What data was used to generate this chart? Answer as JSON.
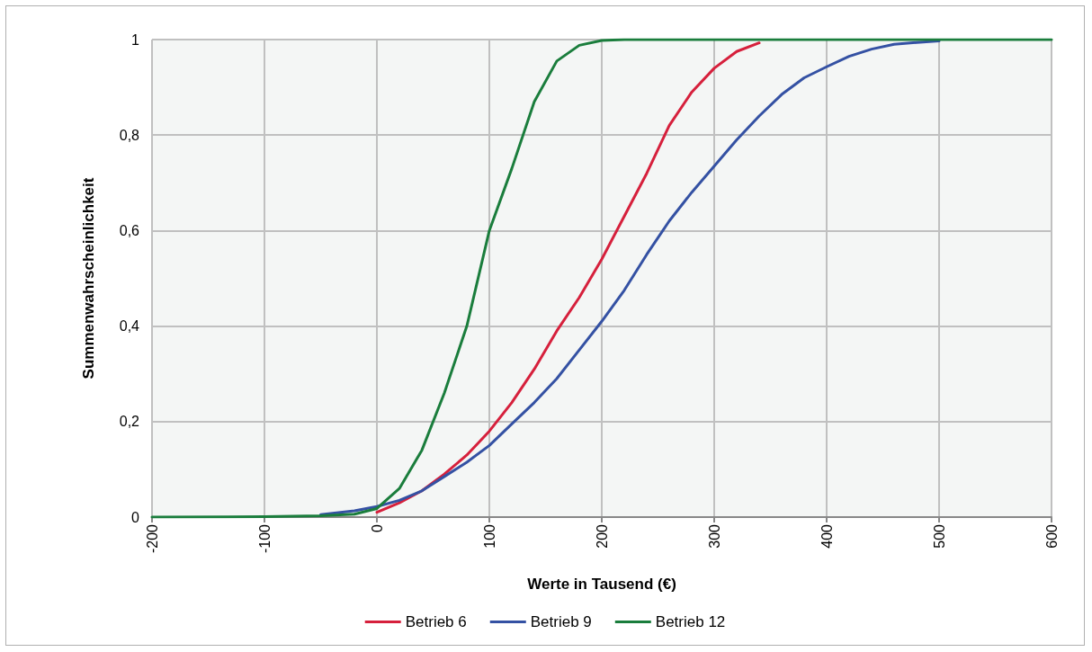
{
  "chart_data": {
    "type": "line",
    "xlabel": "Werte in Tausend (€)",
    "ylabel": "Summenwahrscheinlichkeit",
    "x": [
      -200,
      -100,
      -50,
      -20,
      0,
      20,
      40,
      60,
      80,
      100,
      120,
      140,
      160,
      180,
      200,
      220,
      240,
      260,
      280,
      300,
      320,
      340,
      360,
      380,
      400,
      420,
      440,
      460,
      480,
      500,
      520,
      540,
      560,
      580,
      600
    ],
    "series": [
      {
        "name": "Betrieb 6",
        "color": "#d6203c",
        "x": [
          0,
          20,
          40,
          60,
          80,
          100,
          120,
          140,
          160,
          180,
          200,
          220,
          240,
          260,
          280,
          300,
          320,
          340
        ],
        "values": [
          0.01,
          0.03,
          0.055,
          0.09,
          0.13,
          0.18,
          0.24,
          0.31,
          0.39,
          0.46,
          0.54,
          0.63,
          0.72,
          0.82,
          0.89,
          0.94,
          0.975,
          0.993
        ]
      },
      {
        "name": "Betrieb 9",
        "color": "#3451a3",
        "x": [
          -50,
          -20,
          0,
          20,
          40,
          60,
          80,
          100,
          120,
          140,
          160,
          180,
          200,
          220,
          240,
          260,
          280,
          300,
          320,
          340,
          360,
          380,
          400,
          420,
          440,
          460,
          480,
          500
        ],
        "values": [
          0.005,
          0.013,
          0.022,
          0.035,
          0.055,
          0.085,
          0.115,
          0.15,
          0.195,
          0.24,
          0.29,
          0.35,
          0.41,
          0.475,
          0.55,
          0.62,
          0.68,
          0.735,
          0.79,
          0.84,
          0.885,
          0.92,
          0.943,
          0.965,
          0.98,
          0.99,
          0.994,
          0.997
        ]
      },
      {
        "name": "Betrieb 12",
        "color": "#1a7d3c",
        "values": [
          0,
          0.001,
          0.003,
          0.006,
          0.018,
          0.06,
          0.14,
          0.26,
          0.4,
          0.6,
          0.73,
          0.87,
          0.955,
          0.988,
          0.998,
          1,
          1,
          1,
          1,
          1,
          1,
          1,
          1,
          1,
          1,
          1,
          1,
          1,
          1,
          1,
          1,
          1,
          1,
          1,
          1
        ]
      }
    ],
    "xlim": [
      -200,
      600
    ],
    "xticks": [
      -200,
      -100,
      0,
      100,
      200,
      300,
      400,
      500,
      600
    ],
    "ylim": [
      0,
      1
    ],
    "yticks": [
      0,
      {
        "value": 0.2,
        "label": "0,2"
      },
      {
        "value": 0.4,
        "label": "0,4"
      },
      {
        "value": 0.6,
        "label": "0,6"
      },
      {
        "value": 0.8,
        "label": "0,8"
      },
      1
    ],
    "grid": true,
    "legend": "bottom",
    "marker": "none",
    "line_style": "solid"
  }
}
